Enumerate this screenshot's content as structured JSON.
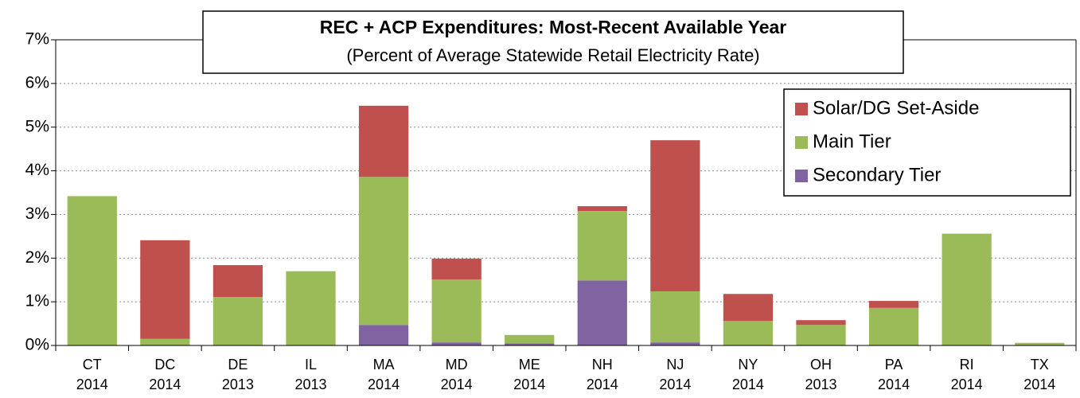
{
  "chart_data": {
    "type": "stacked_bar",
    "title": "REC + ACP Expenditures: Most-Recent Available Year",
    "subtitle": "(Percent of Average Statewide Retail Electricity Rate)",
    "categories": [
      "CT",
      "DC",
      "DE",
      "IL",
      "MA",
      "MD",
      "ME",
      "NH",
      "NJ",
      "NY",
      "OH",
      "PA",
      "RI",
      "TX"
    ],
    "sub_categories": [
      "2014",
      "2014",
      "2013",
      "2013",
      "2014",
      "2014",
      "2014",
      "2014",
      "2014",
      "2014",
      "2013",
      "2014",
      "2014",
      "2014"
    ],
    "series": [
      {
        "name": "Solar/DG Set-Aside",
        "color": "#c0504d",
        "values": [
          0,
          2.26,
          0.73,
          0,
          1.63,
          0.48,
          0,
          0.11,
          3.46,
          0.62,
          0.11,
          0.16,
          0,
          0
        ]
      },
      {
        "name": "Main Tier",
        "color": "#9bbb59",
        "values": [
          3.42,
          0.15,
          1.11,
          1.7,
          3.39,
          1.44,
          0.19,
          1.59,
          1.17,
          0.56,
          0.47,
          0.86,
          2.56,
          0.06
        ]
      },
      {
        "name": "Secondary Tier",
        "color": "#8064a2",
        "values": [
          0,
          0,
          0,
          0,
          0.47,
          0.07,
          0.05,
          1.49,
          0.07,
          0,
          0,
          0,
          0,
          0
        ]
      }
    ],
    "ylim": [
      0,
      7
    ],
    "yticks": [
      {
        "value": 0,
        "label": "0%"
      },
      {
        "value": 1,
        "label": "1%"
      },
      {
        "value": 2,
        "label": "2%"
      },
      {
        "value": 3,
        "label": "3%"
      },
      {
        "value": 4,
        "label": "4%"
      },
      {
        "value": 5,
        "label": "5%"
      },
      {
        "value": 6,
        "label": "6%"
      },
      {
        "value": 7,
        "label": "7%"
      }
    ],
    "grid": true,
    "legend": "upper right"
  }
}
